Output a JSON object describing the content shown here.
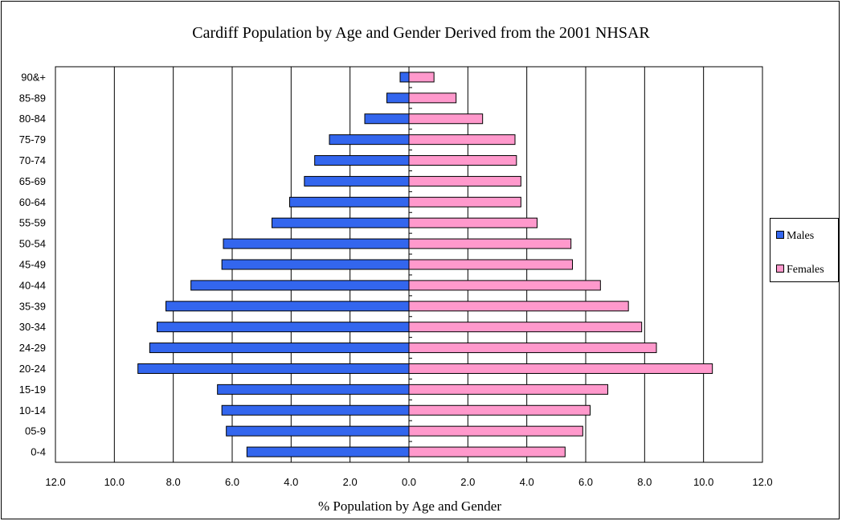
{
  "chart_data": {
    "type": "bar",
    "orientation": "horizontal",
    "title": "Cardiff Population by Age and Gender Derived from the 2001 NHSAR",
    "xlabel": "% Population by Age and Gender",
    "ylabel": "",
    "xlim": [
      -12,
      12
    ],
    "x_ticks": [
      "12.0",
      "10.0",
      "8.0",
      "6.0",
      "4.0",
      "2.0",
      "0.0",
      "2.0",
      "4.0",
      "6.0",
      "8.0",
      "10.0",
      "12.0"
    ],
    "grid": true,
    "legend_position": "right",
    "categories": [
      "0-4",
      "05-9",
      "10-14",
      "15-19",
      "20-24",
      "24-29",
      "30-34",
      "35-39",
      "40-44",
      "45-49",
      "50-54",
      "55-59",
      "60-64",
      "65-69",
      "70-74",
      "75-79",
      "80-84",
      "85-89",
      "90&+"
    ],
    "series": [
      {
        "name": "Males",
        "color": "#3366ee",
        "values": [
          5.5,
          6.2,
          6.35,
          6.5,
          9.2,
          8.8,
          8.55,
          8.25,
          7.4,
          6.35,
          6.3,
          4.65,
          4.05,
          3.55,
          3.2,
          2.7,
          1.5,
          0.75,
          0.3
        ]
      },
      {
        "name": "Females",
        "color": "#ff99cc",
        "values": [
          5.3,
          5.9,
          6.15,
          6.75,
          10.3,
          8.4,
          7.9,
          7.45,
          6.5,
          5.55,
          5.5,
          4.35,
          3.8,
          3.8,
          3.65,
          3.6,
          2.5,
          1.6,
          0.85
        ]
      }
    ]
  }
}
